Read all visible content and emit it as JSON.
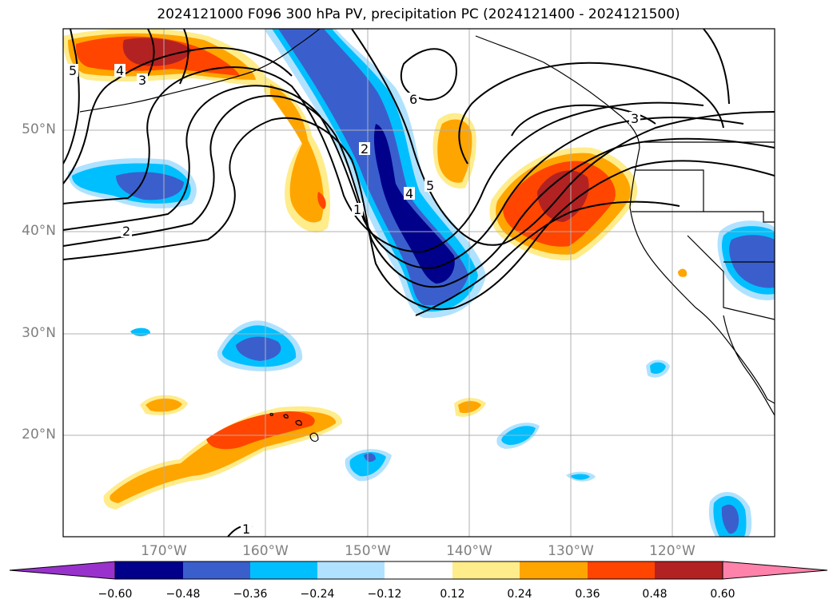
{
  "title": "2024121000 F096 300 hPa PV, precipitation PC (2024121400 - 2024121500)",
  "lat_labels": [
    "50°N",
    "40°N",
    "30°N",
    "20°N"
  ],
  "lon_labels": [
    "170°W",
    "160°W",
    "150°W",
    "140°W",
    "130°W",
    "120°W"
  ],
  "contour_labels": [
    "5",
    "4",
    "3",
    "2",
    "6",
    "3",
    "2",
    "1",
    "5",
    "4",
    "1"
  ],
  "colorbar": {
    "ticks": [
      "−0.60",
      "−0.48",
      "−0.36",
      "−0.24",
      "−0.12",
      "0.12",
      "0.24",
      "0.36",
      "0.48",
      "0.60"
    ],
    "colors": [
      "#9932CC",
      "#00008B",
      "#3A5FCD",
      "#00BFFF",
      "#B0E2FF",
      "#FFFFFF",
      "#FFEC8B",
      "#FFA500",
      "#FF4500",
      "#B22222",
      "#FF82AB"
    ]
  }
}
